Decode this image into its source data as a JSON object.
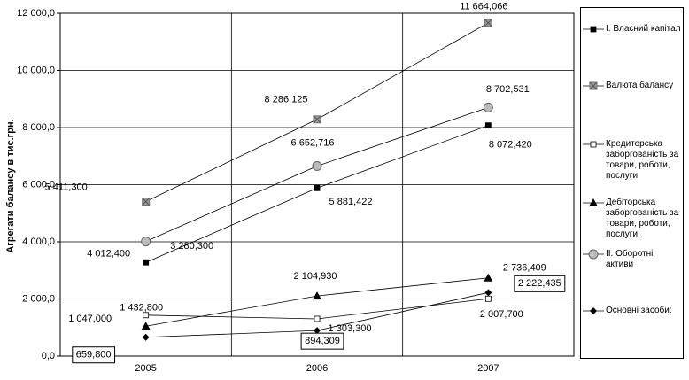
{
  "chart_data": {
    "type": "line",
    "y_label": "Агрегати балансу в тис.грн.",
    "categories": [
      "2005",
      "2006",
      "2007"
    ],
    "ylim": [
      0,
      12000
    ],
    "yticks": [
      {
        "value": 0,
        "label": "0,0"
      },
      {
        "value": 2000,
        "label": "2 000,0"
      },
      {
        "value": 4000,
        "label": "4 000,0"
      },
      {
        "value": 6000,
        "label": "6 000,0"
      },
      {
        "value": 8000,
        "label": "8 000,0"
      },
      {
        "value": 10000,
        "label": "10 000,0"
      },
      {
        "value": 12000,
        "label": "12 000,0"
      }
    ],
    "grid": true,
    "legend": "right",
    "series": [
      {
        "name": "І. Власний капітал",
        "color": "#000000",
        "marker": "square",
        "values": [
          3280.3,
          5881.422,
          8072.42
        ],
        "value_labels": [
          "3 280,300",
          "5 881,422",
          "8 072,420"
        ]
      },
      {
        "name": "Валюта балансу",
        "color": "#999999",
        "marker": "x-square",
        "values": [
          5411.3,
          8286.125,
          11664.066
        ],
        "value_labels": [
          "5 411,300",
          "8 286,125",
          "11 664,066"
        ]
      },
      {
        "name": "Кредиторська заборгованість за товари, роботи, послуги",
        "color": "#ffffff",
        "marker": "square",
        "values": [
          1432.8,
          1303.3,
          2007.7
        ],
        "value_labels": [
          "1 432,800",
          "1 303,300",
          "2 007,700"
        ]
      },
      {
        "name": "Дебіторська заборгованість за товари, роботи, послуги:",
        "color": "#000000",
        "marker": "triangle",
        "values": [
          1047.0,
          2104.93,
          2736.409
        ],
        "value_labels": [
          "1 047,000",
          "2 104,930",
          "2 736,409"
        ]
      },
      {
        "name": "ІІ. Оборотні активи",
        "color": "#bbbbbb",
        "marker": "circle",
        "values": [
          4012.4,
          6652.716,
          8702.531
        ],
        "value_labels": [
          "4 012,400",
          "6 652,716",
          "8 702,531"
        ]
      },
      {
        "name": "Основні засоби:",
        "color": "#000000",
        "marker": "diamond",
        "values": [
          659.8,
          894.309,
          2222.435
        ],
        "value_labels": [
          "659,800",
          "894,309",
          "2 222,435"
        ]
      }
    ]
  }
}
